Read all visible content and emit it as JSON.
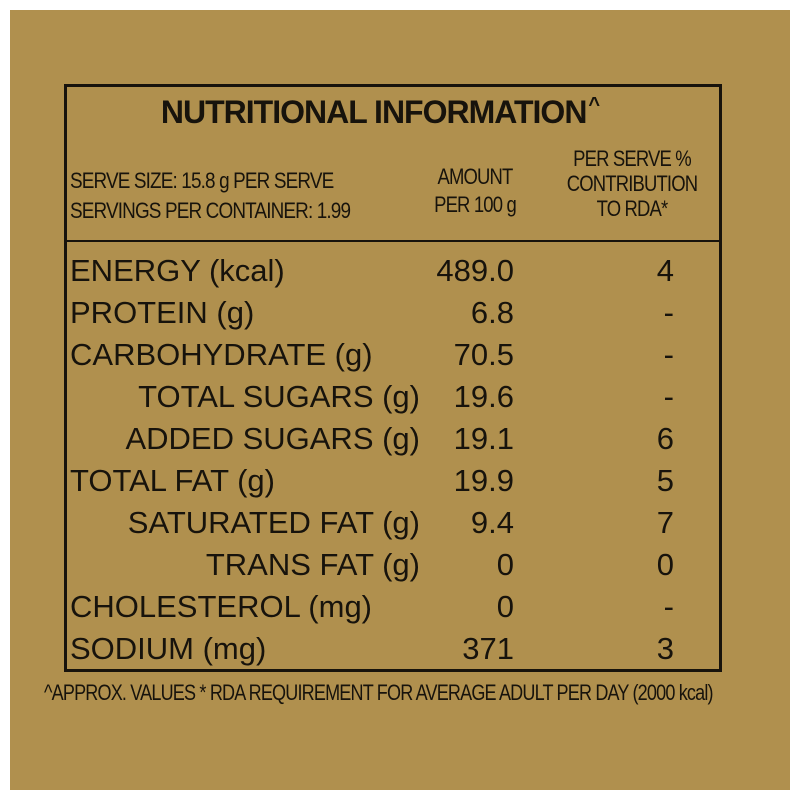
{
  "title": "NUTRITIONAL INFORMATION",
  "title_mark": "^",
  "serve_size": "SERVE SIZE: 15.8 g PER SERVE",
  "servings_per_container": "SERVINGS PER CONTAINER: 1.99",
  "columns": {
    "amount_line1": "AMOUNT",
    "amount_line2": "PER 100 g",
    "rda_line1": "PER SERVE %",
    "rda_line2": "CONTRIBUTION",
    "rda_line3": "TO RDA*"
  },
  "rows": [
    {
      "label": "ENERGY (kcal)",
      "amount": "489.0",
      "rda": "4"
    },
    {
      "label": "PROTEIN (g)",
      "amount": "6.8",
      "rda": "-"
    },
    {
      "label": "CARBOHYDRATE (g)",
      "amount": "70.5",
      "rda": "-"
    },
    {
      "label": "TOTAL SUGARS (g)",
      "amount": "19.6",
      "rda": "-"
    },
    {
      "label": "ADDED SUGARS (g)",
      "amount": "19.1",
      "rda": "6"
    },
    {
      "label": "TOTAL FAT (g)",
      "amount": "19.9",
      "rda": "5"
    },
    {
      "label": "SATURATED FAT (g)",
      "amount": "9.4",
      "rda": "7"
    },
    {
      "label": "TRANS FAT (g)",
      "amount": "0",
      "rda": "0"
    },
    {
      "label": "CHOLESTEROL (mg)",
      "amount": "0",
      "rda": "-"
    },
    {
      "label": "SODIUM (mg)",
      "amount": "371",
      "rda": "3"
    }
  ],
  "footnote": "^APPROX. VALUES * RDA REQUIREMENT FOR AVERAGE ADULT PER DAY (2000 kcal)",
  "colors": {
    "background": "#b0904e",
    "ink": "#17130c"
  }
}
